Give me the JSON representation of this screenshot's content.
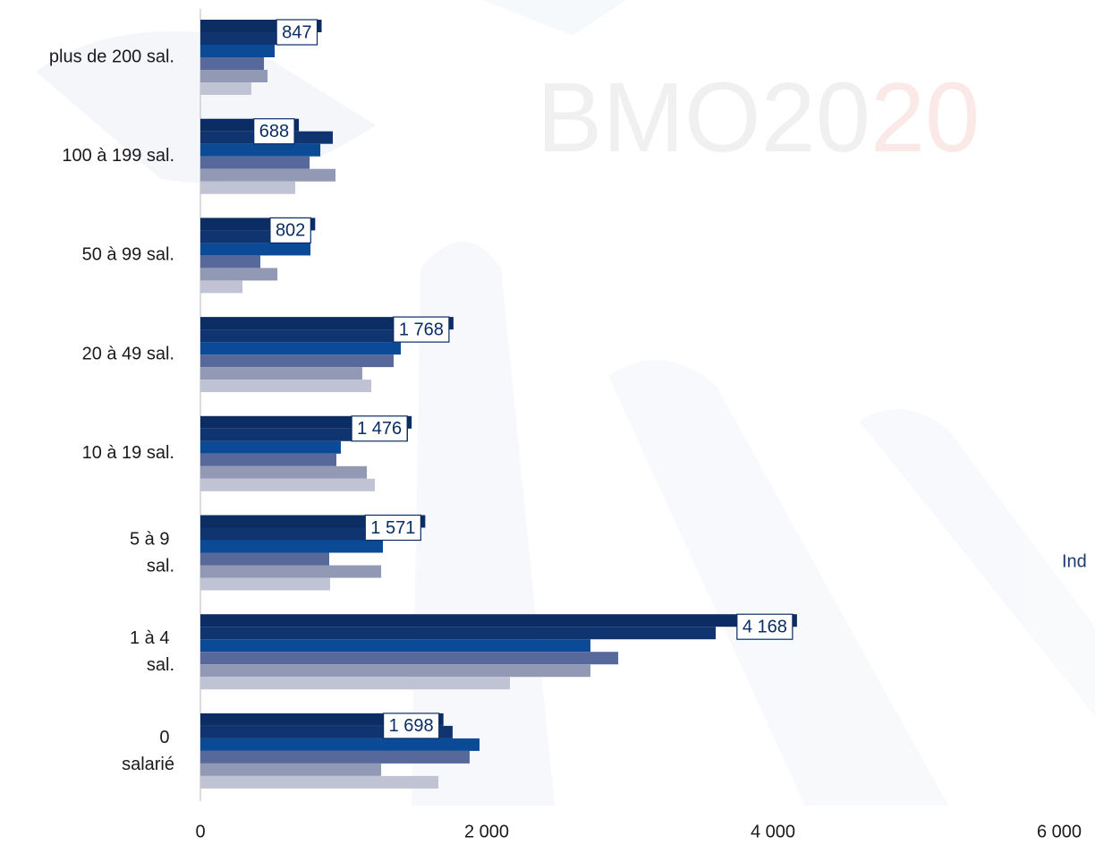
{
  "chart_data": {
    "type": "bar",
    "orientation": "horizontal",
    "watermark": [
      "BMO20",
      "20"
    ],
    "side_label": "Ind",
    "categories": [
      "plus de 200 sal.",
      "100 à 199 sal.",
      "50 à 99 sal.",
      "20 à 49 sal.",
      "10 à 19 sal.",
      "5 à 9 sal.",
      "1 à 4 sal.",
      "0 salarié"
    ],
    "series": [
      {
        "color": "#0b2d63",
        "values": [
          847,
          688,
          802,
          1768,
          1476,
          1571,
          4168,
          1698
        ],
        "value_labels": [
          "847",
          "688",
          "802",
          "1 768",
          "1 476",
          "1 571",
          "4 168",
          "1 698"
        ]
      },
      {
        "color": "#0f3470",
        "values": [
          750,
          925,
          760,
          1700,
          1450,
          1500,
          3600,
          1762
        ]
      },
      {
        "color": "#0a4a96",
        "values": [
          519,
          838,
          769,
          1400,
          981,
          1275,
          2725,
          1950
        ]
      },
      {
        "color": "#56699a",
        "values": [
          444,
          763,
          419,
          1350,
          950,
          900,
          2919,
          1881
        ]
      },
      {
        "color": "#9199b5",
        "values": [
          469,
          944,
          538,
          1131,
          1163,
          1263,
          2725,
          1263
        ]
      },
      {
        "color": "#c0c3d4",
        "values": [
          356,
          663,
          294,
          1194,
          1219,
          906,
          2163,
          1663
        ]
      }
    ],
    "xlim": [
      0,
      6000
    ],
    "xticks": [
      0,
      {
        "value": 2000,
        "label": "2 000"
      },
      {
        "value": 4000,
        "label": "4 000"
      },
      {
        "value": 6000,
        "label": "6 000"
      }
    ]
  }
}
